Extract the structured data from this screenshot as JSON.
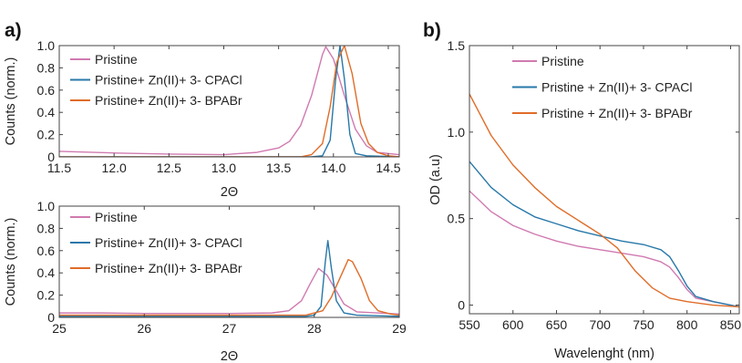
{
  "colors": {
    "pristine": "#d07ab0",
    "cpacl": "#2778a9",
    "bpabr": "#e06c28",
    "axis": "#444444"
  },
  "chart_data": [
    {
      "panel_label": "a)",
      "type": "line",
      "xlabel": "2Θ",
      "ylabel": "Counts (norm.)",
      "xlim": [
        11.5,
        14.6
      ],
      "ylim": [
        0,
        1.0
      ],
      "xticks": [
        "11.5",
        "12.0",
        "12.5",
        "13.0",
        "13.5",
        "14.0",
        "14.5"
      ],
      "yticks": [
        "0",
        "0.2",
        "0.4",
        "0.6",
        "0.8",
        "1.0"
      ],
      "legend_position": "top-left",
      "series": [
        {
          "name": "Pristine",
          "color": "#d07ab0",
          "points": [
            [
              11.5,
              0.05
            ],
            [
              12.0,
              0.035
            ],
            [
              12.5,
              0.025
            ],
            [
              13.0,
              0.02
            ],
            [
              13.3,
              0.04
            ],
            [
              13.5,
              0.08
            ],
            [
              13.6,
              0.14
            ],
            [
              13.7,
              0.28
            ],
            [
              13.8,
              0.55
            ],
            [
              13.9,
              0.92
            ],
            [
              13.93,
              0.99
            ],
            [
              14.0,
              0.88
            ],
            [
              14.1,
              0.55
            ],
            [
              14.2,
              0.25
            ],
            [
              14.3,
              0.1
            ],
            [
              14.4,
              0.04
            ],
            [
              14.6,
              0.02
            ]
          ]
        },
        {
          "name": "Pristine+ Zn(II)+ 3- CPACl",
          "color": "#2778a9",
          "points": [
            [
              11.5,
              0.0
            ],
            [
              13.8,
              0.0
            ],
            [
              13.9,
              0.01
            ],
            [
              13.97,
              0.15
            ],
            [
              14.02,
              0.7
            ],
            [
              14.06,
              1.0
            ],
            [
              14.1,
              0.7
            ],
            [
              14.15,
              0.2
            ],
            [
              14.2,
              0.03
            ],
            [
              14.3,
              0.01
            ],
            [
              14.6,
              0.0
            ]
          ]
        },
        {
          "name": "Pristine+ Zn(II)+ 3- BPABr",
          "color": "#e06c28",
          "points": [
            [
              11.5,
              0.0
            ],
            [
              13.7,
              0.0
            ],
            [
              13.8,
              0.02
            ],
            [
              13.9,
              0.12
            ],
            [
              13.97,
              0.45
            ],
            [
              14.03,
              0.85
            ],
            [
              14.1,
              1.0
            ],
            [
              14.17,
              0.75
            ],
            [
              14.25,
              0.3
            ],
            [
              14.32,
              0.12
            ],
            [
              14.4,
              0.04
            ],
            [
              14.5,
              0.01
            ],
            [
              14.6,
              0.0
            ]
          ]
        }
      ]
    },
    {
      "panel_label": "",
      "type": "line",
      "xlabel": "2Θ",
      "ylabel": "Counts (norm.)",
      "xlim": [
        25,
        29
      ],
      "ylim": [
        0,
        1.0
      ],
      "xticks": [
        "25",
        "26",
        "27",
        "28",
        "29"
      ],
      "yticks": [
        "0",
        "0.2",
        "0.4",
        "0.6",
        "0.8",
        "1.0"
      ],
      "legend_position": "top-left",
      "series": [
        {
          "name": "Pristine",
          "color": "#d07ab0",
          "points": [
            [
              25.0,
              0.04
            ],
            [
              25.5,
              0.04
            ],
            [
              26.0,
              0.035
            ],
            [
              26.5,
              0.035
            ],
            [
              27.0,
              0.035
            ],
            [
              27.5,
              0.04
            ],
            [
              27.7,
              0.06
            ],
            [
              27.85,
              0.15
            ],
            [
              27.95,
              0.3
            ],
            [
              28.05,
              0.44
            ],
            [
              28.15,
              0.38
            ],
            [
              28.25,
              0.25
            ],
            [
              28.35,
              0.12
            ],
            [
              28.5,
              0.05
            ],
            [
              29.0,
              0.03
            ]
          ]
        },
        {
          "name": "Pristine+ Zn(II)+ 3- CPACl",
          "color": "#2778a9",
          "points": [
            [
              25.0,
              0.01
            ],
            [
              27.9,
              0.01
            ],
            [
              28.0,
              0.02
            ],
            [
              28.08,
              0.1
            ],
            [
              28.13,
              0.5
            ],
            [
              28.16,
              0.69
            ],
            [
              28.2,
              0.45
            ],
            [
              28.26,
              0.15
            ],
            [
              28.35,
              0.04
            ],
            [
              28.5,
              0.02
            ],
            [
              29.0,
              0.01
            ]
          ]
        },
        {
          "name": "Pristine+ Zn(II)+ 3- BPABr",
          "color": "#e06c28",
          "points": [
            [
              25.0,
              0.02
            ],
            [
              27.9,
              0.02
            ],
            [
              28.1,
              0.06
            ],
            [
              28.2,
              0.18
            ],
            [
              28.3,
              0.35
            ],
            [
              28.4,
              0.52
            ],
            [
              28.45,
              0.5
            ],
            [
              28.55,
              0.35
            ],
            [
              28.65,
              0.15
            ],
            [
              28.75,
              0.06
            ],
            [
              28.9,
              0.03
            ],
            [
              29.0,
              0.02
            ]
          ]
        }
      ]
    },
    {
      "panel_label": "b)",
      "type": "line",
      "xlabel": "Wavelenght (nm)",
      "ylabel": "OD (a.u)",
      "xlim": [
        550,
        860
      ],
      "ylim": [
        -0.05,
        1.5
      ],
      "xticks": [
        "550",
        "600",
        "650",
        "700",
        "750",
        "800",
        "850"
      ],
      "yticks": [
        "0",
        "0.5",
        "1.0",
        "1.5"
      ],
      "legend_position": "top-left",
      "series": [
        {
          "name": "Pristine",
          "color": "#d07ab0",
          "points": [
            [
              550,
              0.66
            ],
            [
              575,
              0.54
            ],
            [
              600,
              0.46
            ],
            [
              625,
              0.41
            ],
            [
              650,
              0.37
            ],
            [
              675,
              0.34
            ],
            [
              700,
              0.32
            ],
            [
              725,
              0.3
            ],
            [
              750,
              0.28
            ],
            [
              770,
              0.25
            ],
            [
              780,
              0.22
            ],
            [
              790,
              0.16
            ],
            [
              800,
              0.09
            ],
            [
              810,
              0.04
            ],
            [
              830,
              0.02
            ],
            [
              860,
              -0.01
            ]
          ]
        },
        {
          "name": "Pristine + Zn(II)+ 3- CPACl",
          "color": "#2778a9",
          "points": [
            [
              550,
              0.83
            ],
            [
              575,
              0.68
            ],
            [
              600,
              0.58
            ],
            [
              625,
              0.51
            ],
            [
              650,
              0.47
            ],
            [
              675,
              0.43
            ],
            [
              700,
              0.4
            ],
            [
              725,
              0.37
            ],
            [
              750,
              0.35
            ],
            [
              770,
              0.32
            ],
            [
              780,
              0.28
            ],
            [
              790,
              0.2
            ],
            [
              800,
              0.11
            ],
            [
              810,
              0.05
            ],
            [
              830,
              0.02
            ],
            [
              860,
              -0.01
            ]
          ]
        },
        {
          "name": "Pristine + Zn(II)+ 3- BPABr",
          "color": "#e06c28",
          "points": [
            [
              550,
              1.22
            ],
            [
              575,
              0.98
            ],
            [
              600,
              0.81
            ],
            [
              625,
              0.68
            ],
            [
              650,
              0.57
            ],
            [
              675,
              0.49
            ],
            [
              700,
              0.41
            ],
            [
              720,
              0.33
            ],
            [
              740,
              0.2
            ],
            [
              760,
              0.1
            ],
            [
              780,
              0.04
            ],
            [
              800,
              0.02
            ],
            [
              830,
              0.0
            ],
            [
              860,
              -0.01
            ]
          ]
        }
      ]
    }
  ]
}
